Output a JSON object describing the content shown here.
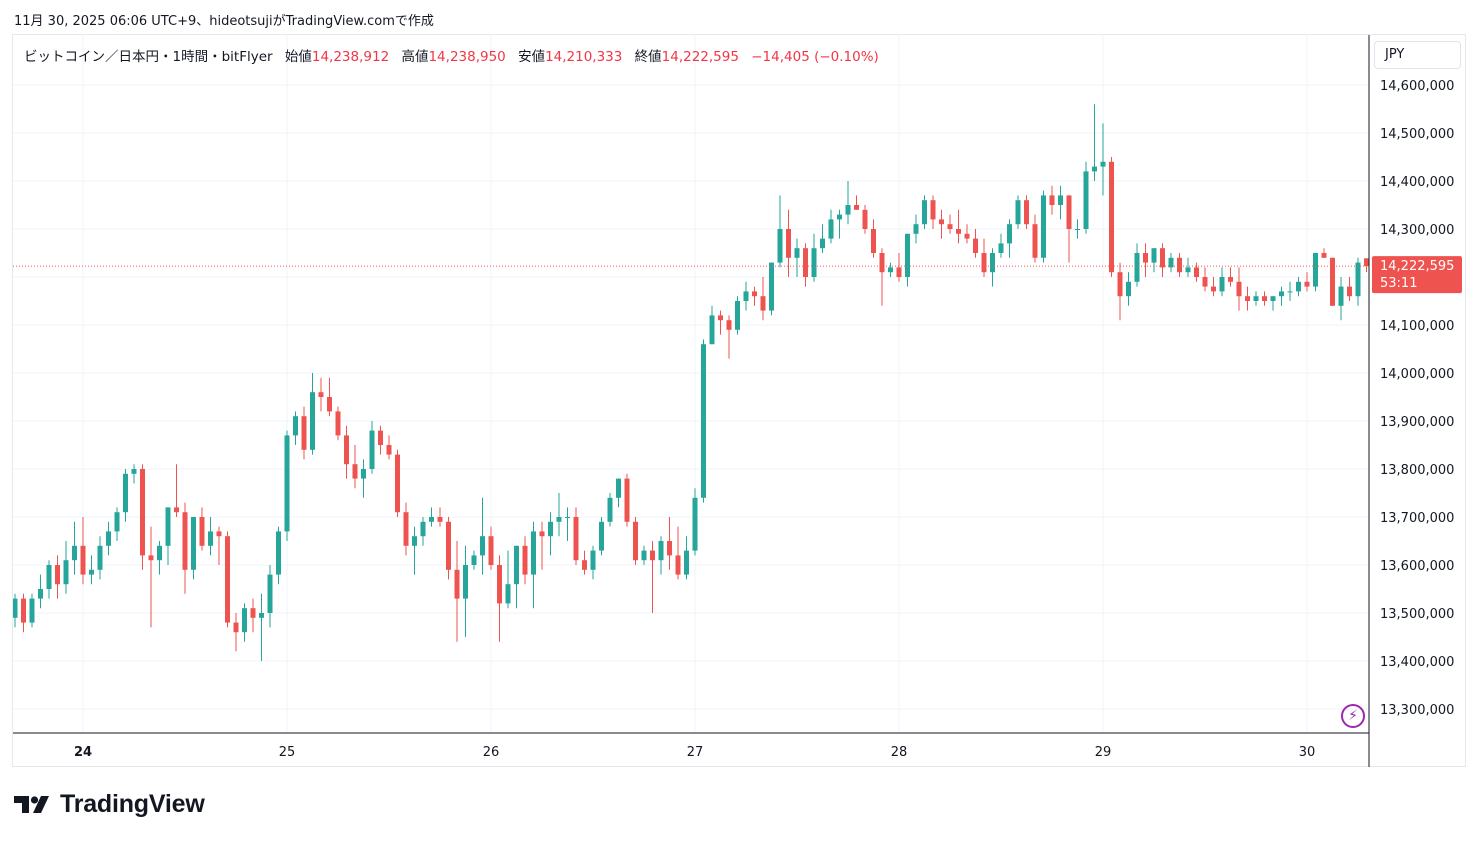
{
  "caption": "11月 30, 2025 06:06 UTC+9、hideotsujiがTradingView.comで作成",
  "legend": {
    "symbol": "ビットコイン／日本円・1時間・bitFlyer",
    "open_label": "始値",
    "open_value": "14,238,912",
    "high_label": "高値",
    "high_value": "14,238,950",
    "low_label": "安値",
    "low_value": "14,210,333",
    "close_label": "終値",
    "close_value": "14,222,595",
    "change": "−14,405 (−0.10%)"
  },
  "currency": "JPY",
  "price_tag": {
    "price": "14,222,595",
    "countdown": "53:11"
  },
  "brand": "TradingView",
  "icons": {
    "flash": "lightning-icon",
    "logo": "tradingview-logo-icon"
  },
  "colors": {
    "up": "#26a69a",
    "down": "#ef5350",
    "grid": "#f0f3fa",
    "last_price": "#ef5350"
  },
  "chart_data": {
    "type": "candlestick",
    "interval": "1h",
    "y_ticks": [
      13300000,
      13400000,
      13500000,
      13600000,
      13700000,
      13800000,
      13900000,
      14000000,
      14100000,
      14200000,
      14300000,
      14400000,
      14500000,
      14600000
    ],
    "y_tick_labels": [
      "13,300,000",
      "13,400,000",
      "13,500,000",
      "13,600,000",
      "13,700,000",
      "13,800,000",
      "13,900,000",
      "14,000,000",
      "14,100,000",
      "14,200,000",
      "14,300,000",
      "14,400,000",
      "14,500,000",
      "14,600,000"
    ],
    "ylim": [
      13240000,
      14650000
    ],
    "x_labels": [
      "24",
      "25",
      "26",
      "27",
      "28",
      "29",
      "30"
    ],
    "x_label_bar_index": [
      10,
      34,
      58,
      82,
      106,
      130,
      154
    ],
    "last_price": 14222595,
    "grid": true,
    "candles": [
      [
        13460000,
        13490000,
        13370000,
        13430000
      ],
      [
        13430000,
        13500000,
        13420000,
        13490000
      ],
      [
        13490000,
        13540000,
        13470000,
        13530000
      ],
      [
        13530000,
        13540000,
        13460000,
        13480000
      ],
      [
        13480000,
        13540000,
        13470000,
        13530000
      ],
      [
        13530000,
        13580000,
        13510000,
        13550000
      ],
      [
        13550000,
        13610000,
        13530000,
        13600000
      ],
      [
        13600000,
        13620000,
        13530000,
        13560000
      ],
      [
        13560000,
        13650000,
        13540000,
        13610000
      ],
      [
        13610000,
        13690000,
        13580000,
        13640000
      ],
      [
        13640000,
        13700000,
        13560000,
        13580000
      ],
      [
        13580000,
        13620000,
        13560000,
        13590000
      ],
      [
        13590000,
        13660000,
        13570000,
        13640000
      ],
      [
        13640000,
        13690000,
        13620000,
        13670000
      ],
      [
        13670000,
        13720000,
        13650000,
        13710000
      ],
      [
        13710000,
        13800000,
        13690000,
        13790000
      ],
      [
        13790000,
        13810000,
        13770000,
        13800000
      ],
      [
        13800000,
        13810000,
        13590000,
        13620000
      ],
      [
        13620000,
        13680000,
        13470000,
        13610000
      ],
      [
        13610000,
        13650000,
        13580000,
        13640000
      ],
      [
        13640000,
        13720000,
        13600000,
        13720000
      ],
      [
        13720000,
        13810000,
        13700000,
        13710000
      ],
      [
        13710000,
        13730000,
        13540000,
        13590000
      ],
      [
        13590000,
        13700000,
        13570000,
        13700000
      ],
      [
        13700000,
        13720000,
        13630000,
        13640000
      ],
      [
        13640000,
        13700000,
        13620000,
        13670000
      ],
      [
        13670000,
        13680000,
        13600000,
        13660000
      ],
      [
        13660000,
        13670000,
        13470000,
        13480000
      ],
      [
        13480000,
        13500000,
        13420000,
        13460000
      ],
      [
        13460000,
        13520000,
        13440000,
        13510000
      ],
      [
        13510000,
        13530000,
        13460000,
        13490000
      ],
      [
        13490000,
        13540000,
        13400000,
        13500000
      ],
      [
        13500000,
        13600000,
        13470000,
        13580000
      ],
      [
        13580000,
        13680000,
        13560000,
        13670000
      ],
      [
        13670000,
        13880000,
        13650000,
        13870000
      ],
      [
        13870000,
        13920000,
        13850000,
        13910000
      ],
      [
        13910000,
        13930000,
        13820000,
        13840000
      ],
      [
        13840000,
        14000000,
        13830000,
        13960000
      ],
      [
        13960000,
        13990000,
        13920000,
        13950000
      ],
      [
        13950000,
        13990000,
        13910000,
        13920000
      ],
      [
        13920000,
        13930000,
        13860000,
        13870000
      ],
      [
        13870000,
        13890000,
        13780000,
        13810000
      ],
      [
        13810000,
        13850000,
        13760000,
        13780000
      ],
      [
        13780000,
        13820000,
        13740000,
        13800000
      ],
      [
        13800000,
        13900000,
        13790000,
        13880000
      ],
      [
        13880000,
        13890000,
        13830000,
        13850000
      ],
      [
        13850000,
        13870000,
        13820000,
        13830000
      ],
      [
        13830000,
        13840000,
        13700000,
        13710000
      ],
      [
        13710000,
        13730000,
        13620000,
        13640000
      ],
      [
        13640000,
        13680000,
        13580000,
        13660000
      ],
      [
        13660000,
        13700000,
        13640000,
        13690000
      ],
      [
        13690000,
        13720000,
        13680000,
        13700000
      ],
      [
        13700000,
        13720000,
        13680000,
        13690000
      ],
      [
        13690000,
        13700000,
        13570000,
        13590000
      ],
      [
        13590000,
        13650000,
        13440000,
        13530000
      ],
      [
        13530000,
        13640000,
        13450000,
        13600000
      ],
      [
        13600000,
        13630000,
        13590000,
        13620000
      ],
      [
        13620000,
        13740000,
        13580000,
        13660000
      ],
      [
        13660000,
        13680000,
        13590000,
        13600000
      ],
      [
        13600000,
        13620000,
        13440000,
        13520000
      ],
      [
        13520000,
        13630000,
        13510000,
        13560000
      ],
      [
        13560000,
        13640000,
        13510000,
        13640000
      ],
      [
        13640000,
        13660000,
        13560000,
        13580000
      ],
      [
        13580000,
        13690000,
        13510000,
        13670000
      ],
      [
        13670000,
        13690000,
        13590000,
        13660000
      ],
      [
        13660000,
        13710000,
        13620000,
        13690000
      ],
      [
        13690000,
        13750000,
        13660000,
        13700000
      ],
      [
        13700000,
        13720000,
        13650000,
        13700000
      ],
      [
        13700000,
        13720000,
        13600000,
        13610000
      ],
      [
        13610000,
        13630000,
        13580000,
        13590000
      ],
      [
        13590000,
        13640000,
        13570000,
        13630000
      ],
      [
        13630000,
        13700000,
        13620000,
        13690000
      ],
      [
        13690000,
        13750000,
        13680000,
        13740000
      ],
      [
        13740000,
        13780000,
        13720000,
        13780000
      ],
      [
        13780000,
        13790000,
        13680000,
        13690000
      ],
      [
        13690000,
        13700000,
        13600000,
        13610000
      ],
      [
        13610000,
        13640000,
        13600000,
        13630000
      ],
      [
        13630000,
        13650000,
        13500000,
        13610000
      ],
      [
        13610000,
        13660000,
        13580000,
        13650000
      ],
      [
        13650000,
        13700000,
        13590000,
        13620000
      ],
      [
        13620000,
        13680000,
        13570000,
        13580000
      ],
      [
        13580000,
        13660000,
        13570000,
        13630000
      ],
      [
        13630000,
        13760000,
        13620000,
        13740000
      ],
      [
        13740000,
        14070000,
        13730000,
        14060000
      ],
      [
        14060000,
        14140000,
        14060000,
        14120000
      ],
      [
        14120000,
        14130000,
        14080000,
        14110000
      ],
      [
        14110000,
        14120000,
        14030000,
        14090000
      ],
      [
        14090000,
        14160000,
        14080000,
        14150000
      ],
      [
        14150000,
        14190000,
        14130000,
        14170000
      ],
      [
        14170000,
        14180000,
        14140000,
        14160000
      ],
      [
        14160000,
        14200000,
        14110000,
        14130000
      ],
      [
        14130000,
        14230000,
        14120000,
        14230000
      ],
      [
        14230000,
        14370000,
        14220000,
        14300000
      ],
      [
        14300000,
        14340000,
        14200000,
        14240000
      ],
      [
        14240000,
        14280000,
        14200000,
        14260000
      ],
      [
        14260000,
        14270000,
        14180000,
        14200000
      ],
      [
        14200000,
        14290000,
        14190000,
        14260000
      ],
      [
        14260000,
        14310000,
        14250000,
        14280000
      ],
      [
        14280000,
        14340000,
        14270000,
        14320000
      ],
      [
        14320000,
        14340000,
        14280000,
        14330000
      ],
      [
        14330000,
        14400000,
        14310000,
        14350000
      ],
      [
        14350000,
        14370000,
        14340000,
        14340000
      ],
      [
        14340000,
        14350000,
        14290000,
        14300000
      ],
      [
        14300000,
        14320000,
        14240000,
        14250000
      ],
      [
        14250000,
        14260000,
        14140000,
        14210000
      ],
      [
        14210000,
        14230000,
        14200000,
        14220000
      ],
      [
        14220000,
        14250000,
        14190000,
        14200000
      ],
      [
        14200000,
        14290000,
        14180000,
        14290000
      ],
      [
        14290000,
        14330000,
        14270000,
        14310000
      ],
      [
        14310000,
        14370000,
        14300000,
        14360000
      ],
      [
        14360000,
        14370000,
        14300000,
        14320000
      ],
      [
        14320000,
        14340000,
        14280000,
        14310000
      ],
      [
        14310000,
        14330000,
        14290000,
        14300000
      ],
      [
        14300000,
        14340000,
        14270000,
        14290000
      ],
      [
        14290000,
        14310000,
        14270000,
        14280000
      ],
      [
        14280000,
        14300000,
        14240000,
        14250000
      ],
      [
        14250000,
        14280000,
        14200000,
        14210000
      ],
      [
        14210000,
        14260000,
        14180000,
        14250000
      ],
      [
        14250000,
        14290000,
        14240000,
        14270000
      ],
      [
        14270000,
        14320000,
        14240000,
        14310000
      ],
      [
        14310000,
        14370000,
        14300000,
        14360000
      ],
      [
        14360000,
        14370000,
        14300000,
        14310000
      ],
      [
        14310000,
        14330000,
        14230000,
        14240000
      ],
      [
        14240000,
        14380000,
        14230000,
        14370000
      ],
      [
        14370000,
        14390000,
        14330000,
        14350000
      ],
      [
        14350000,
        14390000,
        14320000,
        14370000
      ],
      [
        14370000,
        14370000,
        14230000,
        14300000
      ],
      [
        14300000,
        14320000,
        14280000,
        14300000
      ],
      [
        14300000,
        14440000,
        14290000,
        14420000
      ],
      [
        14420000,
        14560000,
        14400000,
        14430000
      ],
      [
        14430000,
        14520000,
        14370000,
        14440000
      ],
      [
        14440000,
        14450000,
        14200000,
        14210000
      ],
      [
        14210000,
        14230000,
        14110000,
        14160000
      ],
      [
        14160000,
        14210000,
        14140000,
        14190000
      ],
      [
        14190000,
        14270000,
        14180000,
        14250000
      ],
      [
        14250000,
        14270000,
        14200000,
        14230000
      ],
      [
        14230000,
        14260000,
        14210000,
        14260000
      ],
      [
        14260000,
        14270000,
        14200000,
        14220000
      ],
      [
        14220000,
        14250000,
        14210000,
        14240000
      ],
      [
        14240000,
        14250000,
        14200000,
        14210000
      ],
      [
        14210000,
        14240000,
        14200000,
        14220000
      ],
      [
        14220000,
        14230000,
        14190000,
        14200000
      ],
      [
        14200000,
        14220000,
        14170000,
        14180000
      ],
      [
        14180000,
        14200000,
        14160000,
        14170000
      ],
      [
        14170000,
        14220000,
        14160000,
        14200000
      ],
      [
        14200000,
        14220000,
        14180000,
        14190000
      ],
      [
        14190000,
        14220000,
        14130000,
        14160000
      ],
      [
        14160000,
        14180000,
        14130000,
        14150000
      ],
      [
        14150000,
        14170000,
        14140000,
        14160000
      ],
      [
        14160000,
        14170000,
        14140000,
        14150000
      ],
      [
        14150000,
        14160000,
        14130000,
        14160000
      ],
      [
        14160000,
        14180000,
        14140000,
        14170000
      ],
      [
        14170000,
        14190000,
        14150000,
        14170000
      ],
      [
        14170000,
        14200000,
        14160000,
        14190000
      ],
      [
        14190000,
        14210000,
        14170000,
        14180000
      ],
      [
        14180000,
        14250000,
        14170000,
        14250000
      ],
      [
        14250000,
        14260000,
        14240000,
        14240000
      ],
      [
        14240000,
        14240000,
        14140000,
        14140000
      ],
      [
        14140000,
        14200000,
        14110000,
        14180000
      ],
      [
        14180000,
        14200000,
        14150000,
        14160000
      ],
      [
        14160000,
        14240000,
        14140000,
        14230000
      ],
      [
        14238912,
        14238950,
        14210333,
        14222595
      ]
    ]
  }
}
